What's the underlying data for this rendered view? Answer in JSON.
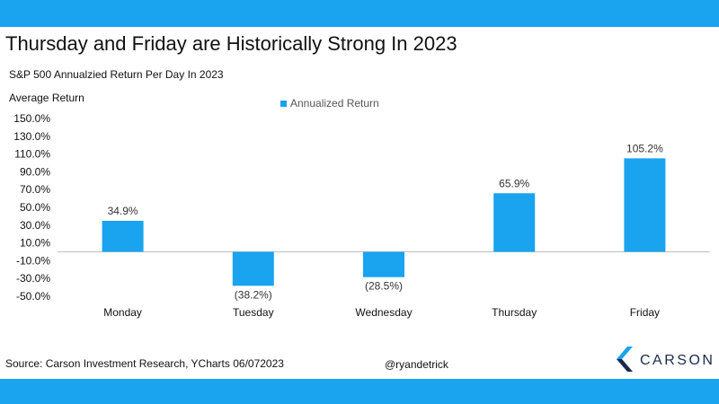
{
  "header": {
    "title": "Thursday and Friday are Historically Strong In 2023",
    "subtitle": "S&P 500 Annualzied Return Per Day In 2023"
  },
  "footer": {
    "source": "Source: Carson Investment Research, YCharts 06/072023",
    "handle": "@ryandetrick",
    "brand": "CARSON"
  },
  "colors": {
    "accent": "#1aa3ef",
    "bar": "#1aa3ef",
    "axis": "#bfbfbf"
  },
  "chart_data": {
    "type": "bar",
    "title": "S&P 500 Annualzied Return Per Day In 2023",
    "ylabel": "Average Return",
    "xlabel": "",
    "legend": "top-center",
    "grid": false,
    "categories": [
      "Monday",
      "Tuesday",
      "Wednesday",
      "Thursday",
      "Friday"
    ],
    "series": [
      {
        "name": "Annualized Return",
        "values": [
          34.9,
          -38.2,
          -28.5,
          65.9,
          105.2
        ],
        "labels": [
          "34.9%",
          "(38.2%)",
          "(28.5%)",
          "65.9%",
          "105.2%"
        ]
      }
    ],
    "ylim": [
      -50,
      150
    ],
    "yticks": [
      -50,
      -30,
      -10,
      10,
      30,
      50,
      70,
      90,
      110,
      130,
      150
    ],
    "ytick_labels": [
      "-50.0%",
      "-30.0%",
      "-10.0%",
      "10.0%",
      "30.0%",
      "50.0%",
      "70.0%",
      "90.0%",
      "110.0%",
      "130.0%",
      "150.0%"
    ]
  }
}
